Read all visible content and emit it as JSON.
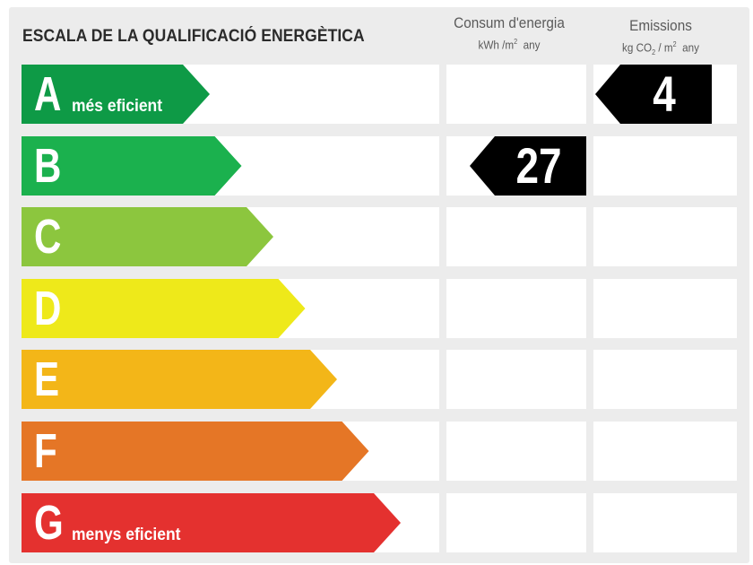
{
  "header": {
    "title": "ESCALA DE LA QUALIFICACIÓ ENERGÈTICA",
    "consumption": {
      "label": "Consum d'energia",
      "unit_prefix": "kWh /m",
      "unit_sup": "2",
      "unit_suffix": "any"
    },
    "emissions": {
      "label": "Emissions",
      "unit_prefix": "kg CO",
      "unit_sub": "2",
      "unit_mid": " / m",
      "unit_sup": "2",
      "unit_suffix": "any"
    }
  },
  "classes": [
    {
      "letter": "A",
      "caption": "més eficient",
      "color": "#0e9a46"
    },
    {
      "letter": "B",
      "caption": "",
      "color": "#1bb14e"
    },
    {
      "letter": "C",
      "caption": "",
      "color": "#8cc63e"
    },
    {
      "letter": "D",
      "caption": "",
      "color": "#eee91a"
    },
    {
      "letter": "E",
      "caption": "",
      "color": "#f3b618"
    },
    {
      "letter": "F",
      "caption": "",
      "color": "#e57626"
    },
    {
      "letter": "G",
      "caption": "menys eficient",
      "color": "#e4312f"
    }
  ],
  "ratings": {
    "consumption": {
      "value": "27",
      "class": "B"
    },
    "emissions": {
      "value": "4",
      "class": "A"
    }
  }
}
